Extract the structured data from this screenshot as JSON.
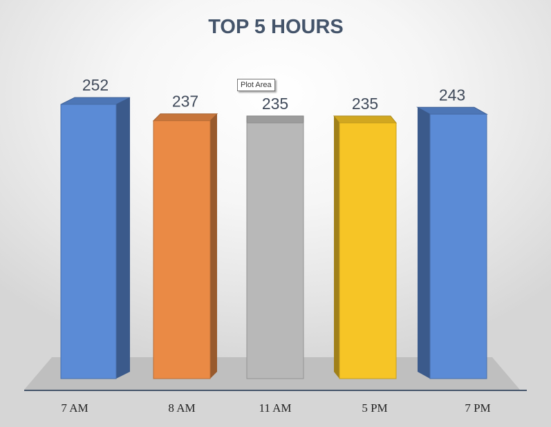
{
  "chart_data": {
    "type": "bar",
    "title": "TOP 5 HOURS",
    "categories": [
      "7 AM",
      "8 AM",
      "11 AM",
      "5 PM",
      "7 PM"
    ],
    "values": [
      252,
      237,
      235,
      235,
      243
    ],
    "colors": [
      "#5b8bd6",
      "#ea8a45",
      "#b8b8b8",
      "#f6c526",
      "#5b8bd6"
    ],
    "xlabel": "",
    "ylabel": "",
    "grid": false,
    "legend": "none"
  },
  "tooltip": {
    "text": "Plot Area"
  }
}
